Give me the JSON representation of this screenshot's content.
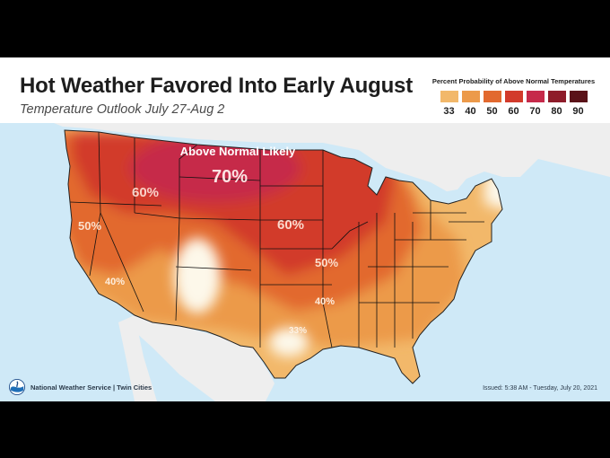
{
  "title": "Hot Weather Favored Into Early August",
  "subtitle": "Temperature Outlook July 27-Aug 2",
  "legend": {
    "title": "Percent Probability of Above Normal Temperatures",
    "items": [
      {
        "label": "33",
        "color": "#f2b86a"
      },
      {
        "label": "40",
        "color": "#ec9a4a"
      },
      {
        "label": "50",
        "color": "#e2692f"
      },
      {
        "label": "60",
        "color": "#d23a2b"
      },
      {
        "label": "70",
        "color": "#c62a4a"
      },
      {
        "label": "80",
        "color": "#8e1c2a"
      },
      {
        "label": "90",
        "color": "#5a1218"
      }
    ]
  },
  "map": {
    "headline": "Above Normal Likely",
    "labels": {
      "p70": "70%",
      "p60_west": "60%",
      "p60_east": "60%",
      "p50_west": "50%",
      "p50_east": "50%",
      "p40_west": "40%",
      "p40_east": "40%",
      "p33": "33%"
    },
    "colors": {
      "water": "#cfe9f7",
      "land": "#f0f0f0",
      "normal": "#fdf8ea"
    }
  },
  "footer": {
    "agency": "National Weather Service | Twin Cities",
    "issued": "Issued: 5:38 AM - Tuesday, July 20, 2021",
    "logo_icon": "noaa-logo-icon"
  }
}
